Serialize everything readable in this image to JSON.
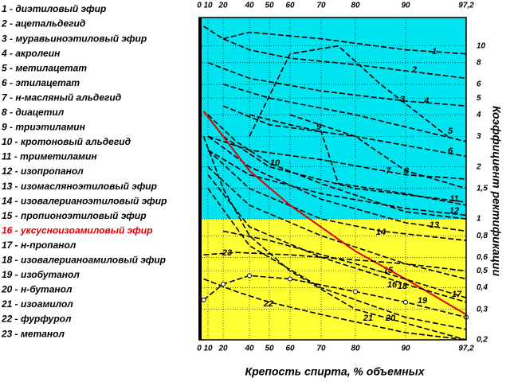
{
  "chart_data": {
    "type": "line",
    "x_label": "Крепость спирта, % объемных",
    "y_label": "Коэффициент ректификации",
    "log_y": true,
    "grid": true,
    "xlim": [
      0,
      97.2
    ],
    "xticks": [
      0,
      10,
      20,
      40,
      50,
      60,
      70,
      80,
      90,
      {
        "value": 97.2,
        "label": "97,2"
      }
    ],
    "ylim": [
      0.2,
      14.6
    ],
    "yticks": [
      {
        "value": 0.2,
        "label": "0,2"
      },
      {
        "value": 0.3,
        "label": "0,3"
      },
      {
        "value": 0.4,
        "label": "0,4"
      },
      {
        "value": 0.5,
        "label": "0,5"
      },
      {
        "value": 0.6,
        "label": "0,6"
      },
      {
        "value": 0.8,
        "label": "0,8"
      },
      1,
      {
        "value": 1.5,
        "label": "1,5"
      },
      2,
      3,
      4,
      5,
      6,
      8,
      10
    ],
    "bands": [
      {
        "from": 0.2,
        "to": 1,
        "color": "#ffff33"
      },
      {
        "from": 1,
        "to": 14.6,
        "color": "#00e5f0"
      }
    ],
    "series": [
      {
        "name": "1 - диэтиловый эфир",
        "label": "1",
        "color": "#000000",
        "x": [
          20,
          40,
          70,
          90,
          97.2
        ],
        "values": [
          11,
          12,
          11,
          9.5,
          9
        ]
      },
      {
        "name": "2 - ацетальдегид",
        "label": "2",
        "color": "#000000",
        "x": [
          5,
          20,
          40,
          60,
          80,
          97.2
        ],
        "values": [
          13,
          11,
          9.5,
          8.5,
          7.8,
          6.5
        ]
      },
      {
        "name": "3 - муравьиноэтиловый эфир",
        "label": "3",
        "color": "#000000",
        "x": [
          10,
          40,
          70,
          90,
          97.2
        ],
        "values": [
          8,
          6.5,
          5.5,
          4.8,
          4.5
        ]
      },
      {
        "name": "4 - акролеин",
        "label": "4",
        "color": "#000000",
        "x": [
          40,
          60,
          75,
          85,
          95
        ],
        "values": [
          3,
          9,
          10,
          6,
          3
        ]
      },
      {
        "name": "5 - метилацетат",
        "label": "5",
        "color": "#000000",
        "x": [
          20,
          50,
          80,
          97.2
        ],
        "values": [
          6,
          5,
          4,
          2.8
        ]
      },
      {
        "name": "6 - этилацетат",
        "label": "6",
        "color": "#000000",
        "x": [
          20,
          50,
          80,
          97.2
        ],
        "values": [
          4.5,
          3.5,
          3,
          2.3
        ]
      },
      {
        "name": "7 - н-масляный альдегид",
        "label": "7",
        "color": "#000000",
        "x": [
          10,
          40,
          70,
          90,
          97.2
        ],
        "values": [
          3,
          2.5,
          2.2,
          1.8,
          1.7
        ]
      },
      {
        "name": "8 - диацетил",
        "label": "8",
        "color": "#000000",
        "x": [
          60,
          80,
          90,
          97.2
        ],
        "values": [
          4,
          3,
          1.9,
          1.5
        ]
      },
      {
        "name": "9 - триэтиламин",
        "label": "9",
        "color": "#000000",
        "x": [
          40,
          60,
          70,
          75,
          90,
          97.2
        ],
        "values": [
          4,
          3.5,
          3.2,
          1.6,
          1.4,
          1.2
        ]
      },
      {
        "name": "10 - кротоновый альдегид",
        "label": "10",
        "color": "#000000",
        "x": [
          10,
          30,
          50,
          70,
          90,
          97.2
        ],
        "values": [
          4,
          2.8,
          2.1,
          1.6,
          1.1,
          1
        ]
      },
      {
        "name": "11 - триметиламин",
        "label": "11",
        "color": "#000000",
        "x": [
          20,
          50,
          80,
          97.2
        ],
        "values": [
          3,
          2,
          1.5,
          1.25
        ]
      },
      {
        "name": "12 - изопропанол",
        "label": "12",
        "color": "#000000",
        "x": [
          10,
          40,
          70,
          90,
          97.2
        ],
        "values": [
          2.5,
          1.8,
          1.4,
          1.15,
          1.05
        ]
      },
      {
        "name": "13 - изомасляноэтиловый эфир",
        "label": "13",
        "color": "#000000",
        "x": [
          10,
          40,
          70,
          90,
          97.2
        ],
        "values": [
          3,
          2,
          1.3,
          0.95,
          0.85
        ]
      },
      {
        "name": "14 - изовалерианоэтиловый эфир",
        "label": "14",
        "color": "#000000",
        "x": [
          10,
          40,
          70,
          85,
          97.2
        ],
        "values": [
          2.5,
          1.5,
          1,
          0.85,
          0.75
        ]
      },
      {
        "name": "15 - пропионоэтиловый эфир",
        "label": "15",
        "color": "#000000",
        "x": [
          10,
          40,
          70,
          90,
          97.2
        ],
        "values": [
          2,
          1.2,
          0.8,
          0.55,
          0.45
        ]
      },
      {
        "name": "16 - уксусноизоамиловый эфир",
        "label": "16",
        "color": "#e00000",
        "x": [
          5,
          20,
          40,
          60,
          80,
          90,
          97.2
        ],
        "values": [
          4.2,
          3,
          1.9,
          1.2,
          0.65,
          0.45,
          0.28
        ]
      },
      {
        "name": "17 - н-пропанол",
        "label": "17",
        "color": "#000000",
        "x": [
          20,
          50,
          80,
          97.2
        ],
        "values": [
          0.85,
          0.75,
          0.55,
          0.35
        ]
      },
      {
        "name": "18 - изовалерианоамиловый эфир",
        "label": "18",
        "color": "#000000",
        "x": [
          10,
          40,
          70,
          90,
          97.2
        ],
        "values": [
          1.8,
          0.9,
          0.6,
          0.42,
          0.33
        ]
      },
      {
        "name": "19 - изобутанол",
        "label": "19",
        "color": "#000000",
        "markers": true,
        "x": [
          5,
          20,
          40,
          60,
          80,
          90,
          97.2
        ],
        "values": [
          0.34,
          0.42,
          0.47,
          0.45,
          0.38,
          0.33,
          0.27
        ]
      },
      {
        "name": "20 - н-бутанол",
        "label": "20",
        "color": "#000000",
        "x": [
          10,
          40,
          70,
          90,
          97.2
        ],
        "values": [
          1.5,
          0.7,
          0.4,
          0.27,
          0.23
        ]
      },
      {
        "name": "21 - изоамилол",
        "label": "21",
        "color": "#000000",
        "x": [
          5,
          20,
          40,
          60,
          80,
          97.2
        ],
        "values": [
          3,
          1.5,
          0.8,
          0.5,
          0.3,
          0.2
        ]
      },
      {
        "name": "22 - фурфурол",
        "label": "22",
        "color": "#000000",
        "x": [
          5,
          30,
          50,
          70,
          90,
          97.2
        ],
        "values": [
          0.45,
          0.38,
          0.33,
          0.28,
          0.22,
          0.2
        ]
      },
      {
        "name": "23 - метанол",
        "label": "23",
        "color": "#000000",
        "x": [
          5,
          30,
          60,
          90,
          97.2
        ],
        "values": [
          0.62,
          0.64,
          0.62,
          0.55,
          0.5
        ]
      }
    ]
  }
}
